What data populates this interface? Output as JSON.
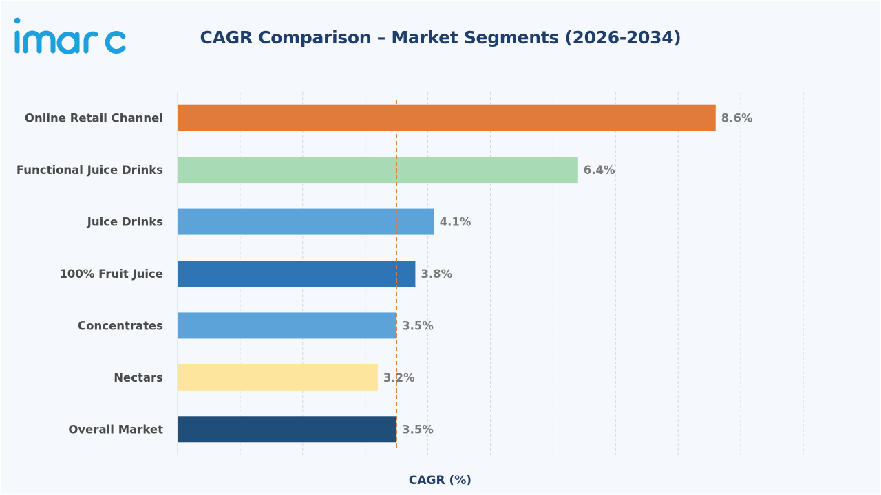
{
  "brand": {
    "logo_text": "imarc",
    "color": "#1fa0dc"
  },
  "chart_data": {
    "type": "bar",
    "orientation": "horizontal",
    "title": "CAGR Comparison – Market Segments (2026-2034)",
    "xlabel": "CAGR (%)",
    "ylabel": "",
    "xlim": [
      0,
      10
    ],
    "grid": "vertical dashed",
    "value_suffix": "%",
    "categories": [
      "Online Retail Channel",
      "Functional Juice Drinks",
      "Juice Drinks",
      "100% Fruit Juice",
      "Concentrates",
      "Nectars",
      "Overall Market"
    ],
    "values": [
      8.6,
      6.4,
      4.1,
      3.8,
      3.5,
      3.2,
      3.5
    ],
    "value_labels": [
      "8.6%",
      "6.4%",
      "4.1%",
      "3.8%",
      "3.5%",
      "3.2%",
      "3.5%"
    ],
    "colors": [
      "#e07b39",
      "#a8dab5",
      "#5ba3d9",
      "#2e75b6",
      "#5ba3d9",
      "#fde69c",
      "#1f4e79"
    ],
    "reference_line": {
      "value": 3.5,
      "color": "#e07b39",
      "style": "dashed"
    }
  }
}
